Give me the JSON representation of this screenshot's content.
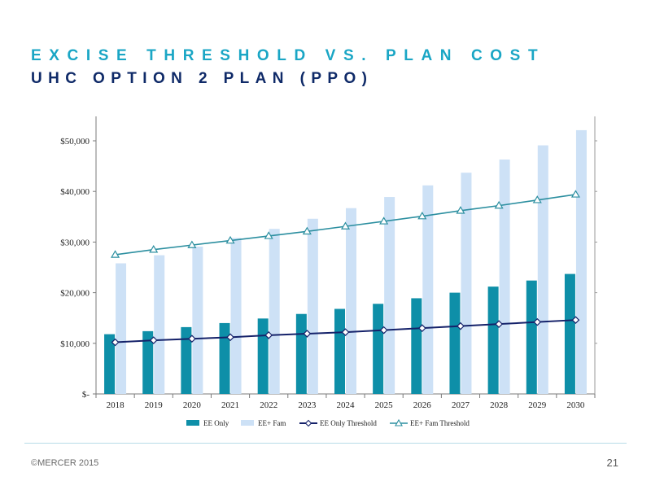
{
  "header": {
    "title": "EXCISE THRESHOLD VS. PLAN COST",
    "subtitle": "UHC OPTION 2 PLAN (PPO)"
  },
  "footer": {
    "copyright": "©MERCER 2015",
    "page_number": "21"
  },
  "colors": {
    "title": "#1aa6c5",
    "subtitle": "#0f2a68",
    "ee_only_bar": "#0e8fa8",
    "ee_fam_bar": "#cde1f6",
    "ee_only_threshold": "#15226a",
    "ee_fam_threshold": "#2c8fa0"
  },
  "chart_data": {
    "type": "bar",
    "categories": [
      "2018",
      "2019",
      "2020",
      "2021",
      "2022",
      "2023",
      "2024",
      "2025",
      "2026",
      "2027",
      "2028",
      "2029",
      "2030"
    ],
    "y_tick_labels": [
      "$-",
      "$10,000",
      "$20,000",
      "$30,000",
      "$40,000",
      "$50,000"
    ],
    "y_ticks": [
      0,
      10000,
      20000,
      30000,
      40000,
      50000
    ],
    "ylim": [
      0,
      55000
    ],
    "grid": false,
    "legend_position": "bottom",
    "series": [
      {
        "name": "EE Only",
        "kind": "bar",
        "values": [
          11800,
          12400,
          13200,
          14000,
          14900,
          15800,
          16800,
          17800,
          18900,
          20000,
          21200,
          22400,
          23700
        ]
      },
      {
        "name": "EE+ Fam",
        "kind": "bar",
        "values": [
          25800,
          27400,
          29100,
          30800,
          32600,
          34600,
          36700,
          38900,
          41200,
          43700,
          46300,
          49100,
          52100
        ]
      },
      {
        "name": "EE Only Threshold",
        "kind": "line",
        "marker": "diamond",
        "values": [
          10200,
          10600,
          10900,
          11200,
          11600,
          11900,
          12200,
          12600,
          13000,
          13400,
          13800,
          14200,
          14600
        ]
      },
      {
        "name": "EE+ Fam Threshold",
        "kind": "line",
        "marker": "triangle",
        "values": [
          27500,
          28500,
          29400,
          30300,
          31200,
          32100,
          33100,
          34100,
          35100,
          36200,
          37200,
          38300,
          39400
        ]
      }
    ]
  }
}
